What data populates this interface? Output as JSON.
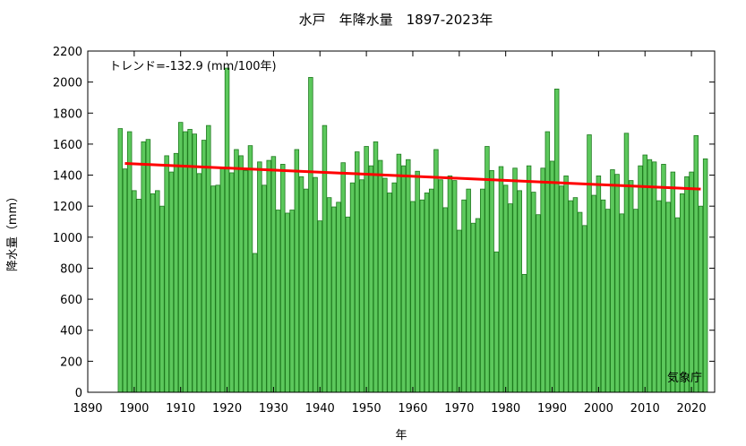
{
  "chart_data": {
    "type": "bar",
    "title": "水戸　年降水量　1897-2023年",
    "xlabel": "年",
    "ylabel": "降水量（mm）",
    "trend_label": "トレンド=-132.9 (mm/100年)",
    "source": "気象庁",
    "xlim": [
      1890,
      2025
    ],
    "ylim": [
      0,
      2200
    ],
    "x_ticks": [
      1890,
      1900,
      1910,
      1920,
      1930,
      1940,
      1950,
      1960,
      1970,
      1980,
      1990,
      2000,
      2010,
      2020
    ],
    "y_ticks": [
      0,
      200,
      400,
      600,
      800,
      1000,
      1200,
      1400,
      1600,
      1800,
      2000,
      2200
    ],
    "grid": false,
    "bar_color": "#5cc85c",
    "bar_edge_color": "#1f7a1f",
    "trend_color": "#ff0000",
    "trend": {
      "x": [
        1898,
        2022
      ],
      "y": [
        1475,
        1310
      ]
    },
    "series": [
      {
        "x": [
          1897,
          1898,
          1899,
          1900,
          1901,
          1902,
          1903,
          1904,
          1905,
          1906,
          1907,
          1908,
          1909,
          1910,
          1911,
          1912,
          1913,
          1914,
          1915,
          1916,
          1917,
          1918,
          1919,
          1920,
          1921,
          1922,
          1923,
          1924,
          1925,
          1926,
          1927,
          1928,
          1929,
          1930,
          1931,
          1932,
          1933,
          1934,
          1935,
          1936,
          1937,
          1938,
          1939,
          1940,
          1941,
          1942,
          1943,
          1944,
          1945,
          1946,
          1947,
          1948,
          1949,
          1950,
          1951,
          1952,
          1953,
          1954,
          1955,
          1956,
          1957,
          1958,
          1959,
          1960,
          1961,
          1962,
          1963,
          1964,
          1965,
          1966,
          1967,
          1968,
          1969,
          1970,
          1971,
          1972,
          1973,
          1974,
          1975,
          1976,
          1977,
          1978,
          1979,
          1980,
          1981,
          1982,
          1983,
          1984,
          1985,
          1986,
          1987,
          1988,
          1989,
          1990,
          1991,
          1992,
          1993,
          1994,
          1995,
          1996,
          1997,
          1998,
          1999,
          2000,
          2001,
          2002,
          2003,
          2004,
          2005,
          2006,
          2007,
          2008,
          2009,
          2010,
          2011,
          2012,
          2013,
          2014,
          2015,
          2016,
          2017,
          2018,
          2019,
          2020,
          2021,
          2022,
          2023
        ],
        "values": [
          1700,
          1440,
          1680,
          1300,
          1245,
          1615,
          1630,
          1280,
          1300,
          1200,
          1525,
          1420,
          1540,
          1740,
          1680,
          1695,
          1665,
          1410,
          1625,
          1720,
          1330,
          1335,
          1450,
          2090,
          1415,
          1565,
          1525,
          1430,
          1590,
          895,
          1485,
          1335,
          1495,
          1520,
          1175,
          1470,
          1155,
          1175,
          1565,
          1390,
          1310,
          2030,
          1385,
          1105,
          1720,
          1255,
          1195,
          1225,
          1480,
          1130,
          1350,
          1550,
          1370,
          1585,
          1460,
          1615,
          1495,
          1380,
          1285,
          1350,
          1535,
          1460,
          1500,
          1230,
          1425,
          1240,
          1285,
          1310,
          1565,
          1370,
          1190,
          1395,
          1365,
          1045,
          1240,
          1310,
          1090,
          1120,
          1310,
          1585,
          1430,
          905,
          1455,
          1335,
          1215,
          1445,
          1300,
          760,
          1460,
          1290,
          1145,
          1445,
          1680,
          1490,
          1955,
          1330,
          1395,
          1235,
          1255,
          1160,
          1075,
          1660,
          1270,
          1395,
          1240,
          1180,
          1435,
          1405,
          1150,
          1670,
          1365,
          1180,
          1460,
          1530,
          1500,
          1485,
          1235,
          1470,
          1225,
          1420,
          1125,
          1280,
          1390,
          1420,
          1655,
          1200,
          1505
        ]
      }
    ]
  }
}
